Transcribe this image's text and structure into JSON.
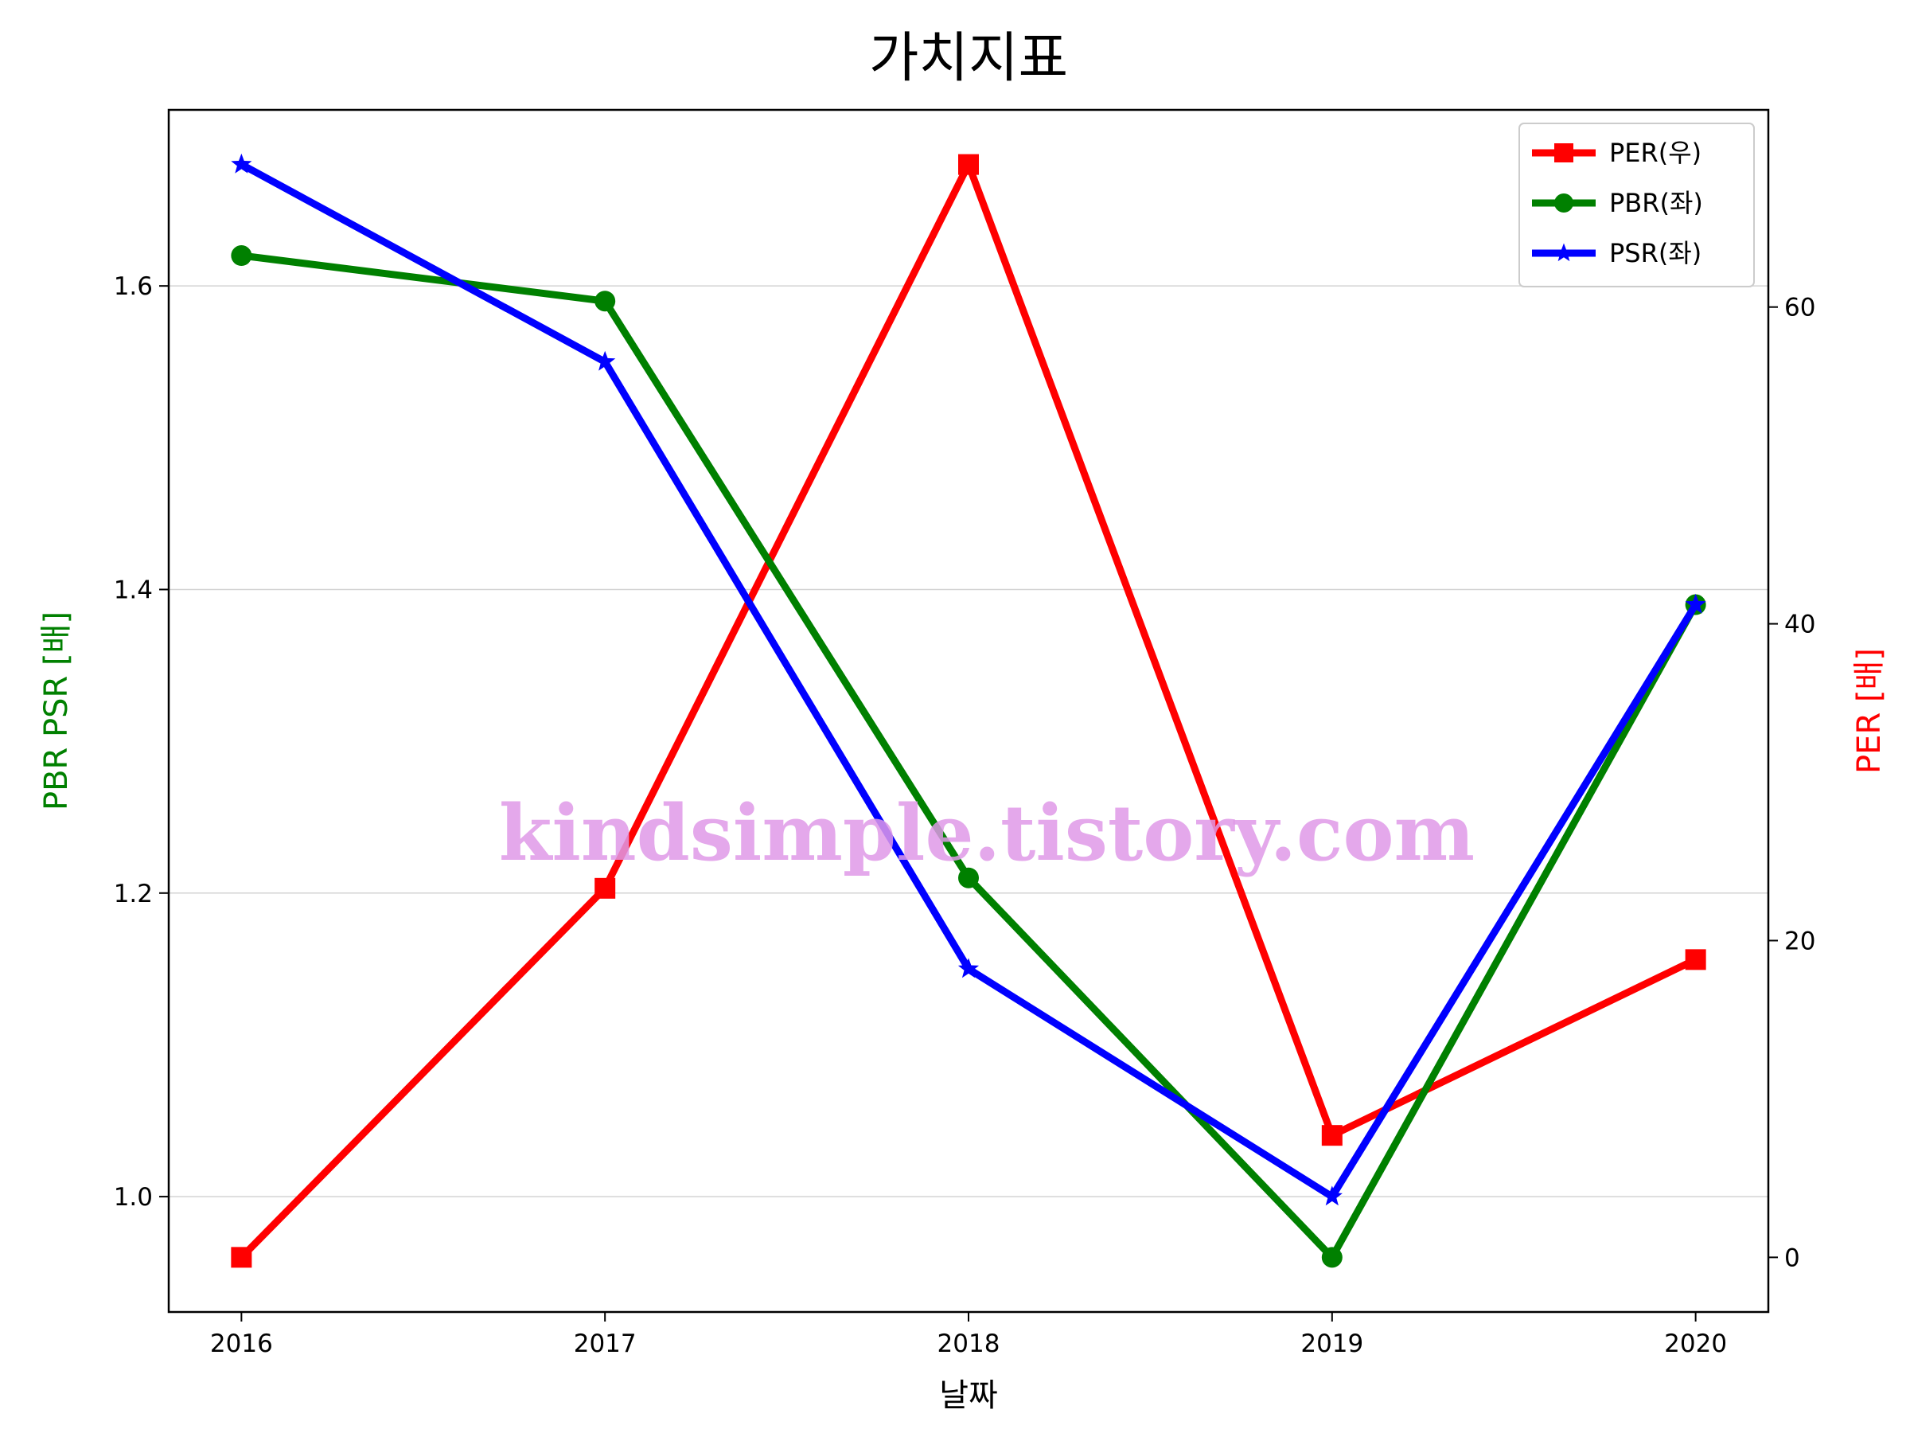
{
  "chart_data": {
    "type": "line",
    "title": "가치지표",
    "xlabel": "날짜",
    "ylabel_left": "PBR PSR [배]",
    "ylabel_right": "PER [배]",
    "x": [
      "2016",
      "2017",
      "2018",
      "2019",
      "2020"
    ],
    "xlim": [
      2015.8,
      2020.2
    ],
    "ylim_left": [
      0.924,
      1.716
    ],
    "ylim_right": [
      -3.45,
      72.45
    ],
    "yticks_left": [
      "1.0",
      "1.2",
      "1.4",
      "1.6"
    ],
    "yticks_right": [
      "0",
      "20",
      "40",
      "60"
    ],
    "grid": "horizontal (left axis)",
    "legend_position": "top-right",
    "series": [
      {
        "name": "PER(우)",
        "axis": "right",
        "marker": "square",
        "color": "#ff0000",
        "values": [
          0.0,
          23.3,
          69.0,
          7.7,
          18.8
        ]
      },
      {
        "name": "PBR(좌)",
        "axis": "left",
        "marker": "circle",
        "color": "#008000",
        "values": [
          1.62,
          1.59,
          1.21,
          0.96,
          1.39
        ]
      },
      {
        "name": "PSR(좌)",
        "axis": "left",
        "marker": "star",
        "color": "#0000ff",
        "values": [
          1.68,
          1.55,
          1.15,
          1.0,
          1.39
        ]
      }
    ],
    "watermark": "kindsimple.tistory.com"
  }
}
